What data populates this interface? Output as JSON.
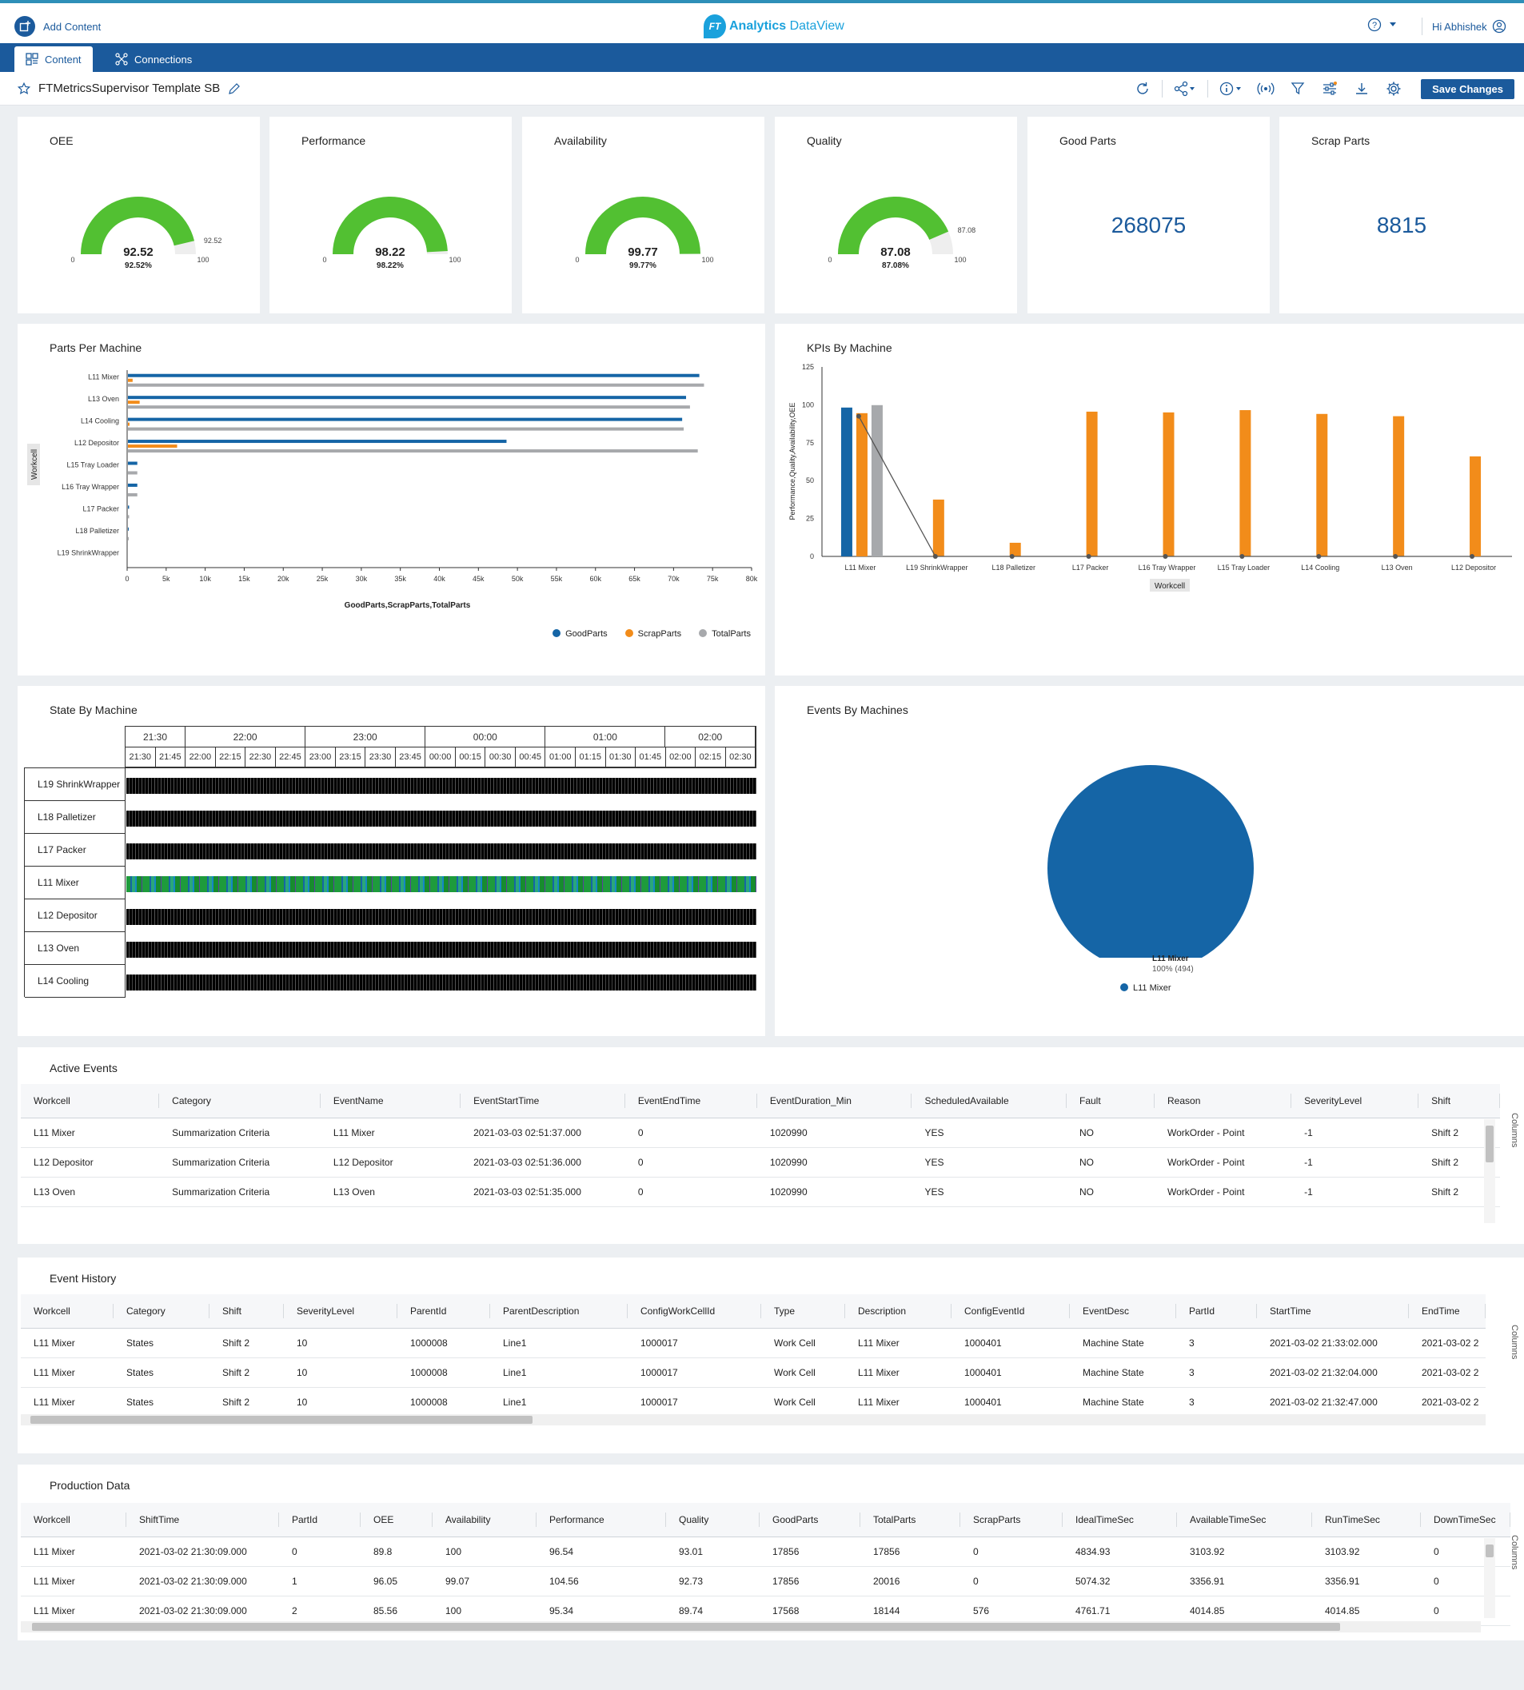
{
  "topbar": {
    "add_content": "Add Content",
    "logo_badge": "FT",
    "logo_bold": "Analytics",
    "logo_regular": " DataView",
    "user": "Hi Abhishek"
  },
  "nav": {
    "tabs": [
      {
        "label": "Content"
      },
      {
        "label": "Connections"
      }
    ]
  },
  "dashboard": {
    "title": "FTMetricsSupervisor Template SB",
    "save_label": "Save Changes"
  },
  "kpis": [
    {
      "title": "OEE",
      "value": "92.52",
      "percent": "92.52%",
      "min": "0",
      "max": "100",
      "target": "92.52",
      "fraction": 0.9252
    },
    {
      "title": "Performance",
      "value": "98.22",
      "percent": "98.22%",
      "min": "0",
      "max": "100",
      "fraction": 0.9822
    },
    {
      "title": "Availability",
      "value": "99.77",
      "percent": "99.77%",
      "min": "0",
      "max": "100",
      "fraction": 0.9977
    },
    {
      "title": "Quality",
      "value": "87.08",
      "percent": "87.08%",
      "min": "0",
      "max": "100",
      "target": "87.08",
      "fraction": 0.8708
    }
  ],
  "counters": [
    {
      "title": "Good Parts",
      "value": "268075"
    },
    {
      "title": "Scrap Parts",
      "value": "8815"
    }
  ],
  "colors": {
    "brand": "#1b5a9c",
    "good": "#1565a6",
    "scrap": "#f28c1a",
    "total": "#a7a9ac",
    "gauge": "#52c032"
  },
  "chart_data": [
    {
      "title": "Parts Per Machine",
      "type": "bar",
      "orientation": "horizontal",
      "ylabel": "Workcell",
      "xlabel": "GoodParts,ScrapParts,TotalParts",
      "categories": [
        "L11 Mixer",
        "L13 Oven",
        "L14 Cooling",
        "L12 Depositor",
        "L15 Tray Loader",
        "L16 Tray Wrapper",
        "L17 Packer",
        "L18 Palletizer",
        "L19 ShrinkWrapper"
      ],
      "xticks": [
        "0",
        "5k",
        "10k",
        "15k",
        "20k",
        "25k",
        "30k",
        "35k",
        "40k",
        "45k",
        "50k",
        "55k",
        "60k",
        "65k",
        "70k",
        "75k",
        "80k"
      ],
      "xlim": [
        0,
        80000
      ],
      "series": [
        {
          "name": "GoodParts",
          "values": [
            73200,
            71500,
            71000,
            48500,
            1200,
            1200,
            150,
            50,
            0
          ]
        },
        {
          "name": "ScrapParts",
          "values": [
            600,
            1500,
            200,
            6300,
            0,
            0,
            0,
            0,
            0
          ]
        },
        {
          "name": "TotalParts",
          "values": [
            73800,
            72000,
            71200,
            73000,
            1200,
            1200,
            150,
            50,
            0
          ]
        }
      ],
      "legend_position": "bottom-right"
    },
    {
      "title": "KPIs By Machine",
      "type": "bar",
      "ylabel": "Performance,Quality,Availability,OEE",
      "xlabel": "Workcell",
      "categories": [
        "L11 Mixer",
        "L19 ShrinkWrapper",
        "L18 Palletizer",
        "L17 Packer",
        "L16 Tray Wrapper",
        "L15 Tray Loader",
        "L14 Cooling",
        "L13 Oven",
        "L12 Depositor"
      ],
      "yticks": [
        "0",
        "25",
        "50",
        "75",
        "100",
        "125"
      ],
      "ylim": [
        0,
        125
      ],
      "series": [
        {
          "type": "bar",
          "values": [
            98.2,
            null,
            null,
            null,
            null,
            null,
            null,
            null,
            null
          ]
        },
        {
          "type": "bar",
          "values": [
            94.5,
            37.5,
            9,
            95.5,
            95,
            96.5,
            94,
            92.5,
            66
          ]
        },
        {
          "type": "bar",
          "values": [
            99.8,
            null,
            null,
            null,
            null,
            null,
            null,
            null,
            null
          ]
        },
        {
          "type": "line",
          "values": [
            92.5,
            0,
            0,
            0,
            0,
            0,
            0,
            0,
            0
          ]
        }
      ]
    },
    {
      "title": "Events By Machines",
      "type": "pie",
      "slices": [
        {
          "label": "L11 Mixer",
          "value": 494,
          "percent": "100%",
          "text": "100% (494)"
        }
      ],
      "legend_position": "bottom"
    }
  ],
  "state_chart": {
    "title": "State By Machine",
    "hours": [
      "21:30",
      "22:00",
      "23:00",
      "00:00",
      "01:00",
      "02:00"
    ],
    "quarters": [
      "21:30",
      "21:45",
      "22:00",
      "22:15",
      "22:30",
      "22:45",
      "23:00",
      "23:15",
      "23:30",
      "23:45",
      "00:00",
      "00:15",
      "00:30",
      "00:45",
      "01:00",
      "01:15",
      "01:30",
      "01:45",
      "02:00",
      "02:15",
      "02:30"
    ],
    "machines": [
      "L19 ShrinkWrapper",
      "L18 Palletizer",
      "L17 Packer",
      "L11 Mixer",
      "L12 Depositor",
      "L13 Oven",
      "L14 Cooling"
    ]
  },
  "active_events": {
    "title": "Active Events",
    "columns_label": "Columns",
    "columns": [
      "Workcell",
      "Category",
      "EventName",
      "EventStartTime",
      "EventEndTime",
      "EventDuration_Min",
      "ScheduledAvailable",
      "Fault",
      "Reason",
      "SeverityLevel",
      "Shift"
    ],
    "rows": [
      [
        "L11 Mixer",
        "Summarization Criteria",
        "L11 Mixer",
        "2021-03-03 02:51:37.000",
        "0",
        "1020990",
        "YES",
        "NO",
        "WorkOrder - Point",
        "-1",
        "Shift 2"
      ],
      [
        "L12 Depositor",
        "Summarization Criteria",
        "L12 Depositor",
        "2021-03-03 02:51:36.000",
        "0",
        "1020990",
        "YES",
        "NO",
        "WorkOrder - Point",
        "-1",
        "Shift 2"
      ],
      [
        "L13 Oven",
        "Summarization Criteria",
        "L13 Oven",
        "2021-03-03 02:51:35.000",
        "0",
        "1020990",
        "YES",
        "NO",
        "WorkOrder - Point",
        "-1",
        "Shift 2"
      ]
    ]
  },
  "event_history": {
    "title": "Event History",
    "columns_label": "Columns",
    "columns": [
      "Workcell",
      "Category",
      "Shift",
      "SeverityLevel",
      "ParentId",
      "ParentDescription",
      "ConfigWorkCellId",
      "Type",
      "Description",
      "ConfigEventId",
      "EventDesc",
      "PartId",
      "StartTime",
      "EndTime"
    ],
    "rows": [
      [
        "L11 Mixer",
        "States",
        "Shift 2",
        "10",
        "1000008",
        "Line1",
        "1000017",
        "Work Cell",
        "L11 Mixer",
        "1000401",
        "Machine State",
        "3",
        "2021-03-02 21:33:02.000",
        "2021-03-02 2"
      ],
      [
        "L11 Mixer",
        "States",
        "Shift 2",
        "10",
        "1000008",
        "Line1",
        "1000017",
        "Work Cell",
        "L11 Mixer",
        "1000401",
        "Machine State",
        "3",
        "2021-03-02 21:32:04.000",
        "2021-03-02 2"
      ],
      [
        "L11 Mixer",
        "States",
        "Shift 2",
        "10",
        "1000008",
        "Line1",
        "1000017",
        "Work Cell",
        "L11 Mixer",
        "1000401",
        "Machine State",
        "3",
        "2021-03-02 21:32:47.000",
        "2021-03-02 2"
      ]
    ]
  },
  "production_data": {
    "title": "Production Data",
    "columns_label": "Columns",
    "columns": [
      "Workcell",
      "ShiftTime",
      "PartId",
      "OEE",
      "Availability",
      "Performance",
      "Quality",
      "GoodParts",
      "TotalParts",
      "ScrapParts",
      "IdealTimeSec",
      "AvailableTimeSec",
      "RunTimeSec",
      "DownTimeSec"
    ],
    "rows": [
      [
        "L11 Mixer",
        "2021-03-02 21:30:09.000",
        "0",
        "89.8",
        "100",
        "96.54",
        "93.01",
        "17856",
        "17856",
        "0",
        "4834.93",
        "3103.92",
        "3103.92",
        "0"
      ],
      [
        "L11 Mixer",
        "2021-03-02 21:30:09.000",
        "1",
        "96.05",
        "99.07",
        "104.56",
        "92.73",
        "17856",
        "20016",
        "0",
        "5074.32",
        "3356.91",
        "3356.91",
        "0"
      ],
      [
        "L11 Mixer",
        "2021-03-02 21:30:09.000",
        "2",
        "85.56",
        "100",
        "95.34",
        "89.74",
        "17568",
        "18144",
        "576",
        "4761.71",
        "4014.85",
        "4014.85",
        "0"
      ]
    ]
  }
}
